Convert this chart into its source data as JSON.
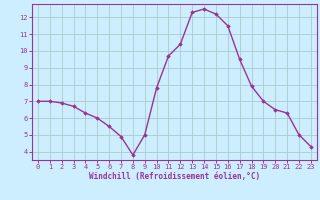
{
  "x": [
    0,
    1,
    2,
    3,
    4,
    5,
    6,
    7,
    8,
    9,
    10,
    11,
    12,
    13,
    14,
    15,
    16,
    17,
    18,
    19,
    20,
    21,
    22,
    23
  ],
  "y": [
    7.0,
    7.0,
    6.9,
    6.7,
    6.3,
    6.0,
    5.5,
    4.9,
    3.8,
    5.0,
    7.8,
    9.7,
    10.4,
    12.3,
    12.5,
    12.2,
    11.5,
    9.5,
    7.9,
    7.0,
    6.5,
    6.3,
    5.0,
    4.3
  ],
  "line_color": "#993399",
  "marker": "D",
  "marker_size": 1.8,
  "linewidth": 1.0,
  "bg_color": "#cceeff",
  "grid_color": "#aacccc",
  "xlabel": "Windchill (Refroidissement éolien,°C)",
  "xlim": [
    -0.5,
    23.5
  ],
  "ylim": [
    3.5,
    12.8
  ],
  "yticks": [
    4,
    5,
    6,
    7,
    8,
    9,
    10,
    11,
    12
  ],
  "xticks": [
    0,
    1,
    2,
    3,
    4,
    5,
    6,
    7,
    8,
    9,
    10,
    11,
    12,
    13,
    14,
    15,
    16,
    17,
    18,
    19,
    20,
    21,
    22,
    23
  ],
  "tick_color": "#993399",
  "label_color": "#993399",
  "axis_color": "#993399",
  "tick_labelsize": 5,
  "xlabel_fontsize": 5.5
}
